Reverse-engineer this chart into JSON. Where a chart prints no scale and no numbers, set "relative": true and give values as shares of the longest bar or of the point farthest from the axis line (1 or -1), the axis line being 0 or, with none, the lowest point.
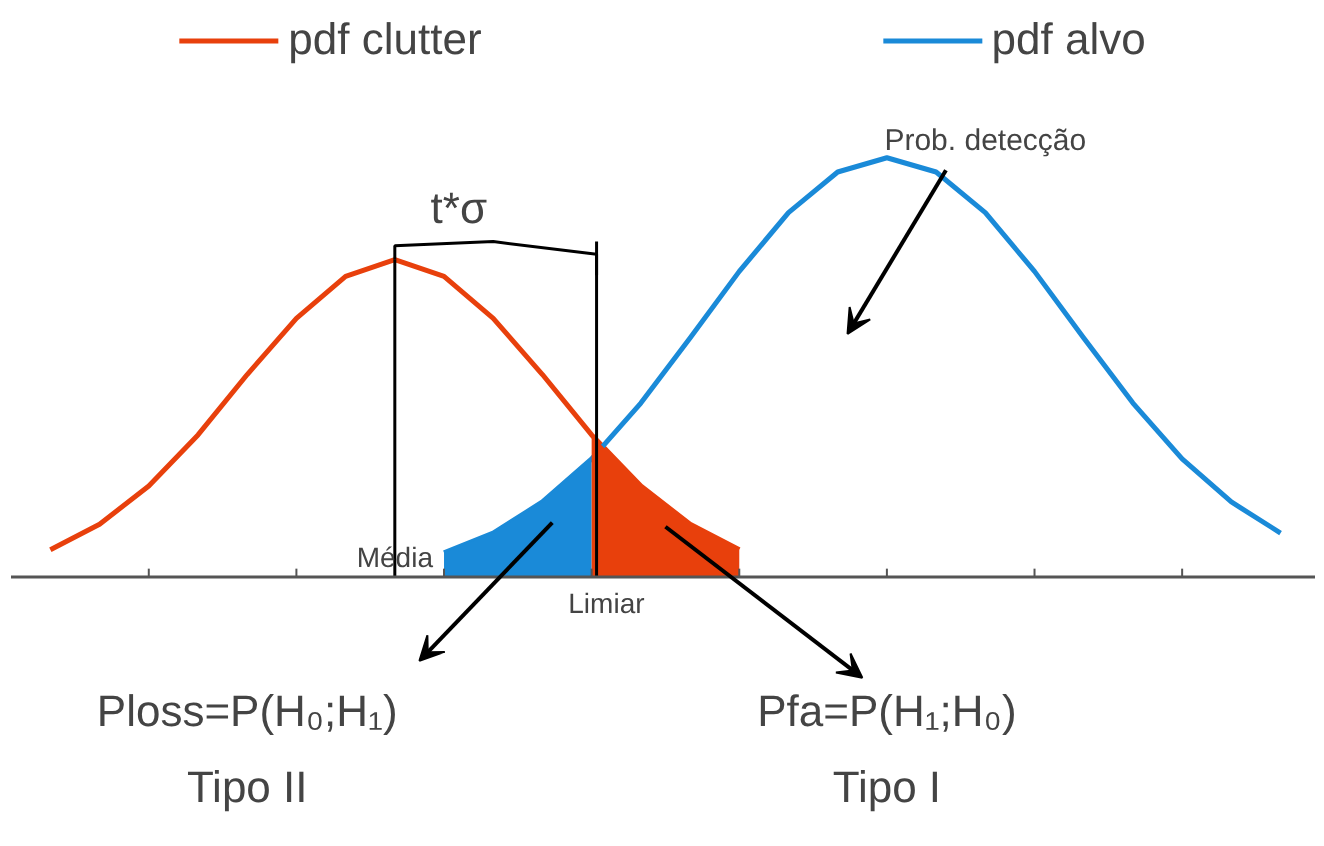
{
  "chart_data": {
    "type": "line",
    "relative": true,
    "categories": [
      null,
      null,
      null,
      null,
      null,
      null,
      null,
      null,
      null,
      null,
      null,
      null,
      null,
      null,
      null,
      null,
      null,
      null,
      null,
      null,
      null,
      null,
      null,
      null,
      null,
      null
    ],
    "series": [
      {
        "name": "pdf clutter",
        "color": "#e8400c",
        "values": [
          0.065,
          0.126,
          0.217,
          0.339,
          0.483,
          0.617,
          0.717,
          0.757,
          0.717,
          0.617,
          0.483,
          0.339,
          0.217,
          0.126,
          0.065,
          null,
          null,
          null,
          null,
          null,
          null,
          null,
          null,
          null,
          null,
          null
        ]
      },
      {
        "name": "pdf alvo",
        "color": "#1a8ad8",
        "values": [
          null,
          null,
          null,
          null,
          null,
          null,
          null,
          null,
          0.058,
          0.105,
          0.179,
          0.282,
          0.415,
          0.57,
          0.729,
          0.869,
          0.966,
          1,
          0.966,
          0.869,
          0.729,
          0.57,
          0.415,
          0.282,
          0.179,
          0.105
        ]
      },
      {
        "type": "area",
        "color": "#1a8ad8",
        "values": [
          null,
          null,
          null,
          null,
          null,
          null,
          null,
          null,
          0.058,
          0.105,
          0.179,
          0.282,
          null,
          null,
          null,
          null,
          null,
          null,
          null,
          null,
          null,
          null,
          null,
          null,
          null,
          null
        ]
      },
      {
        "type": "area",
        "color": "#e8400c",
        "values": [
          null,
          null,
          null,
          null,
          null,
          null,
          null,
          null,
          null,
          null,
          null,
          0.339,
          0.217,
          0.126,
          0.065,
          null,
          null,
          null,
          null,
          null,
          null,
          null,
          null,
          null,
          null,
          null
        ]
      }
    ],
    "annotations": [
      "t*σ",
      "Prob. detecção",
      "Ploss=P(H₀;H₁)",
      "Tipo II",
      "Pfa=P(H₁;H₀)",
      "Tipo I",
      "Média",
      "Limiar"
    ],
    "legend": "top",
    "marker": "none",
    "line_style": "solid",
    "grid": false
  }
}
